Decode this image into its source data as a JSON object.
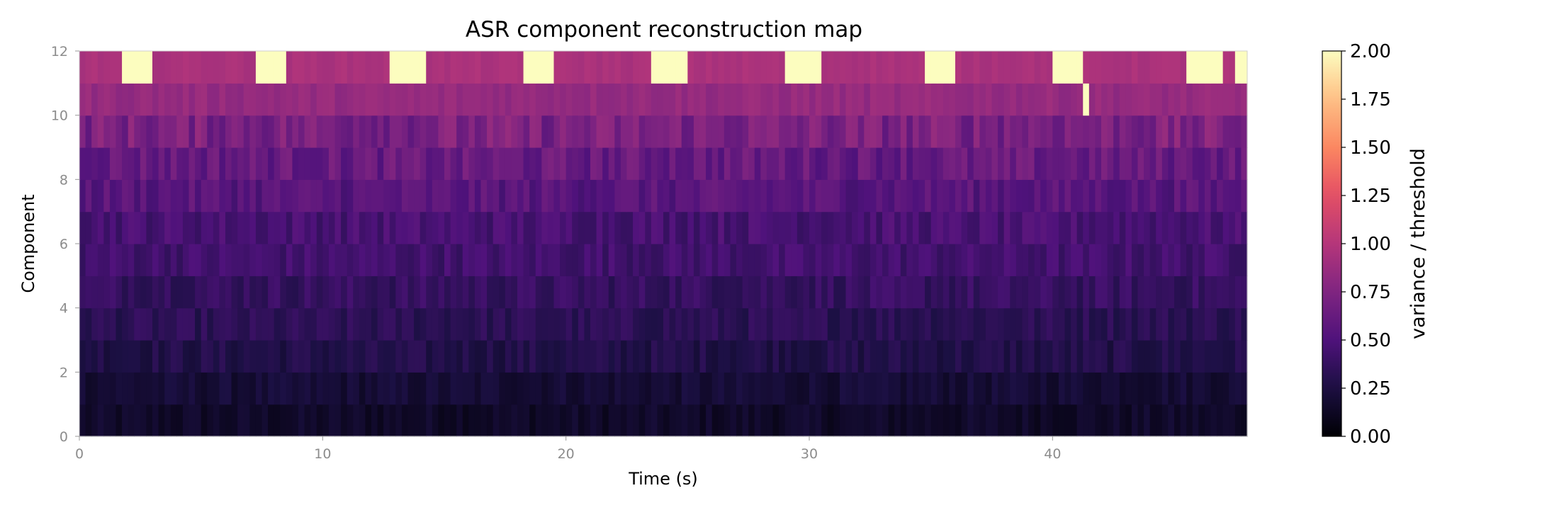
{
  "chart_data": {
    "type": "heatmap",
    "title": "ASR component reconstruction map",
    "xlabel": "Time (s)",
    "ylabel": "Component",
    "xlim": [
      0,
      48
    ],
    "ylim": [
      0,
      12
    ],
    "x_ticks": [
      0,
      10,
      20,
      30,
      40
    ],
    "y_ticks": [
      0,
      2,
      4,
      6,
      8,
      10,
      12
    ],
    "colorbar": {
      "label": "variance / threshold",
      "colormap": "magma",
      "range": [
        0,
        2
      ],
      "ticks": [
        "0.00",
        "0.25",
        "0.50",
        "0.75",
        "1.00",
        "1.25",
        "1.50",
        "1.75",
        "2.00"
      ]
    },
    "rows": 12,
    "time_step_s": 0.25,
    "grid": false,
    "typical_row_level": [
      0.15,
      0.2,
      0.28,
      0.33,
      0.38,
      0.44,
      0.47,
      0.55,
      0.62,
      0.72,
      0.85,
      0.95
    ],
    "row_level_spread": [
      0.06,
      0.06,
      0.07,
      0.07,
      0.08,
      0.08,
      0.09,
      0.1,
      0.12,
      0.14,
      0.05,
      0.03
    ],
    "saturated_intervals": [
      {
        "component": 11,
        "start_s": 1.75,
        "end_s": 3.0,
        "value": 2.0
      },
      {
        "component": 11,
        "start_s": 7.25,
        "end_s": 8.5,
        "value": 2.0
      },
      {
        "component": 11,
        "start_s": 12.75,
        "end_s": 14.25,
        "value": 2.0
      },
      {
        "component": 11,
        "start_s": 18.25,
        "end_s": 19.5,
        "value": 2.0
      },
      {
        "component": 11,
        "start_s": 23.5,
        "end_s": 25.0,
        "value": 2.0
      },
      {
        "component": 11,
        "start_s": 29.0,
        "end_s": 30.5,
        "value": 2.0
      },
      {
        "component": 11,
        "start_s": 34.75,
        "end_s": 36.0,
        "value": 2.0
      },
      {
        "component": 11,
        "start_s": 40.0,
        "end_s": 41.25,
        "value": 2.0
      },
      {
        "component": 10,
        "start_s": 41.25,
        "end_s": 41.5,
        "value": 2.0
      },
      {
        "component": 11,
        "start_s": 45.5,
        "end_s": 47.0,
        "value": 2.0
      },
      {
        "component": 11,
        "start_s": 47.5,
        "end_s": 48.0,
        "value": 2.0
      }
    ]
  }
}
